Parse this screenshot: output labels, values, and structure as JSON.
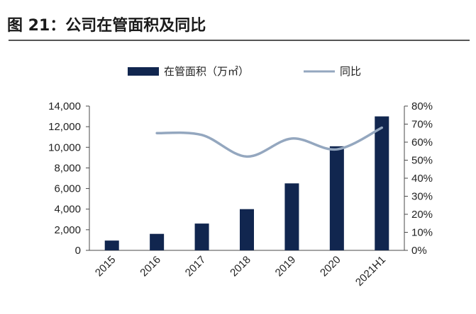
{
  "header": {
    "title": "图 21：公司在管面积及同比"
  },
  "legend": {
    "bar_label": "在管面积（万㎡）",
    "line_label": "同比"
  },
  "colors": {
    "bar": "#11264f",
    "line": "#94a7bf",
    "axis": "#4a4a4a",
    "text": "#222222"
  },
  "watermark": "",
  "chart_data": {
    "type": "bar",
    "categories": [
      "2015",
      "2016",
      "2017",
      "2018",
      "2019",
      "2020",
      "2021H1"
    ],
    "series": [
      {
        "name": "在管面积（万㎡）",
        "type": "bar",
        "axis": "left",
        "values": [
          950,
          1600,
          2600,
          4000,
          6500,
          10100,
          13000
        ]
      },
      {
        "name": "同比",
        "type": "line",
        "axis": "right",
        "values": [
          null,
          0.65,
          0.64,
          0.52,
          0.62,
          0.56,
          0.68
        ]
      }
    ],
    "y_left": {
      "ylim": [
        0,
        14000
      ],
      "ticks": [
        0,
        2000,
        4000,
        6000,
        8000,
        10000,
        12000,
        14000
      ],
      "tick_labels": [
        "0",
        "2,000",
        "4,000",
        "6,000",
        "8,000",
        "10,000",
        "12,000",
        "14,000"
      ]
    },
    "y_right": {
      "ylim": [
        0,
        0.8
      ],
      "ticks": [
        0,
        0.1,
        0.2,
        0.3,
        0.4,
        0.5,
        0.6,
        0.7,
        0.8
      ],
      "tick_labels": [
        "0%",
        "10%",
        "20%",
        "30%",
        "40%",
        "50%",
        "60%",
        "70%",
        "80%"
      ]
    },
    "legend_position": "top-center",
    "grid": false
  }
}
